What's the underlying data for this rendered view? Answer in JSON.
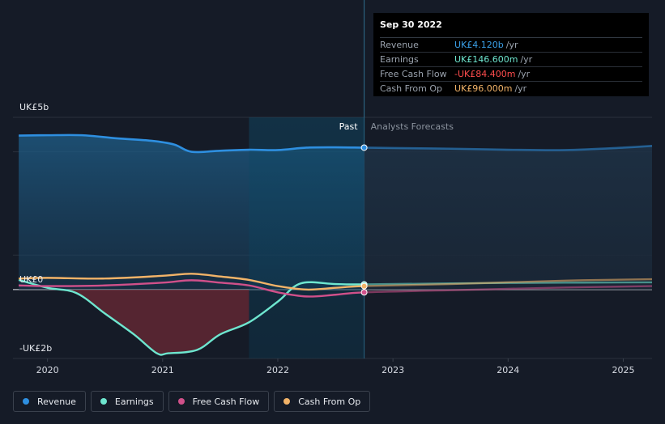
{
  "tooltip": {
    "date": "Sep 30 2022",
    "rows": [
      {
        "name": "Revenue",
        "value": "UK£4.120b",
        "unit": "/yr",
        "color": "#3aa0e8"
      },
      {
        "name": "Earnings",
        "value": "UK£146.600m",
        "unit": "/yr",
        "color": "#6ee6cf"
      },
      {
        "name": "Free Cash Flow",
        "value": "-UK£84.400m",
        "unit": "/yr",
        "color": "#ff4d4d"
      },
      {
        "name": "Cash From Op",
        "value": "UK£96.000m",
        "unit": "/yr",
        "color": "#f2b368"
      }
    ]
  },
  "labels": {
    "past": "Past",
    "forecast": "Analysts Forecasts"
  },
  "legend": [
    {
      "label": "Revenue",
      "color": "#2e8fe0"
    },
    {
      "label": "Earnings",
      "color": "#6ee6cf"
    },
    {
      "label": "Free Cash Flow",
      "color": "#d0508a"
    },
    {
      "label": "Cash From Op",
      "color": "#f2b368"
    }
  ],
  "chart_data": {
    "type": "line",
    "y_tick_labels": [
      "UK£5b",
      "UK£0",
      "-UK£2b"
    ],
    "ylim": [
      -2,
      5
    ],
    "xlim": [
      2019.7,
      2025.25
    ],
    "x_ticks": [
      2020,
      2021,
      2022,
      2023,
      2024,
      2025
    ],
    "x_tick_labels": [
      "2020",
      "2021",
      "2022",
      "2023",
      "2024",
      "2025"
    ],
    "past_end": 2022.75,
    "highlight_start": 2021.75,
    "series": [
      {
        "name": "Revenue",
        "color": "#2e8fe0",
        "x": [
          2019.75,
          2020.0,
          2020.3,
          2020.6,
          2020.9,
          2021.1,
          2021.25,
          2021.5,
          2021.75,
          2022.0,
          2022.25,
          2022.5,
          2022.75,
          2023.0,
          2023.5,
          2024.0,
          2024.5,
          2025.0,
          2025.25
        ],
        "y": [
          4.47,
          4.48,
          4.48,
          4.39,
          4.32,
          4.21,
          4.0,
          4.03,
          4.06,
          4.05,
          4.12,
          4.13,
          4.12,
          4.11,
          4.09,
          4.06,
          4.05,
          4.12,
          4.17
        ]
      },
      {
        "name": "Earnings",
        "color": "#6ee6cf",
        "x": [
          2019.75,
          2020.0,
          2020.25,
          2020.5,
          2020.75,
          2020.95,
          2021.05,
          2021.3,
          2021.5,
          2021.75,
          2022.0,
          2022.2,
          2022.5,
          2022.75,
          2023.5,
          2024.5,
          2025.25
        ],
        "y": [
          0.28,
          0.05,
          -0.1,
          -0.7,
          -1.3,
          -1.85,
          -1.85,
          -1.75,
          -1.3,
          -0.95,
          -0.35,
          0.18,
          0.16,
          0.15,
          0.18,
          0.2,
          0.21
        ]
      },
      {
        "name": "Free Cash Flow",
        "color": "#d0508a",
        "x": [
          2019.75,
          2020.0,
          2020.5,
          2021.0,
          2021.25,
          2021.5,
          2021.75,
          2022.0,
          2022.25,
          2022.5,
          2022.75,
          2023.5,
          2024.5,
          2025.25
        ],
        "y": [
          0.12,
          0.1,
          0.12,
          0.2,
          0.27,
          0.2,
          0.12,
          -0.08,
          -0.2,
          -0.15,
          -0.08,
          -0.02,
          0.06,
          0.1
        ]
      },
      {
        "name": "Cash From Op",
        "color": "#f2b368",
        "x": [
          2019.75,
          2020.0,
          2020.5,
          2021.0,
          2021.25,
          2021.5,
          2021.75,
          2022.0,
          2022.25,
          2022.5,
          2022.75,
          2023.5,
          2024.5,
          2025.25
        ],
        "y": [
          0.32,
          0.34,
          0.32,
          0.4,
          0.46,
          0.38,
          0.28,
          0.1,
          0.0,
          0.05,
          0.1,
          0.16,
          0.26,
          0.3
        ]
      }
    ]
  }
}
